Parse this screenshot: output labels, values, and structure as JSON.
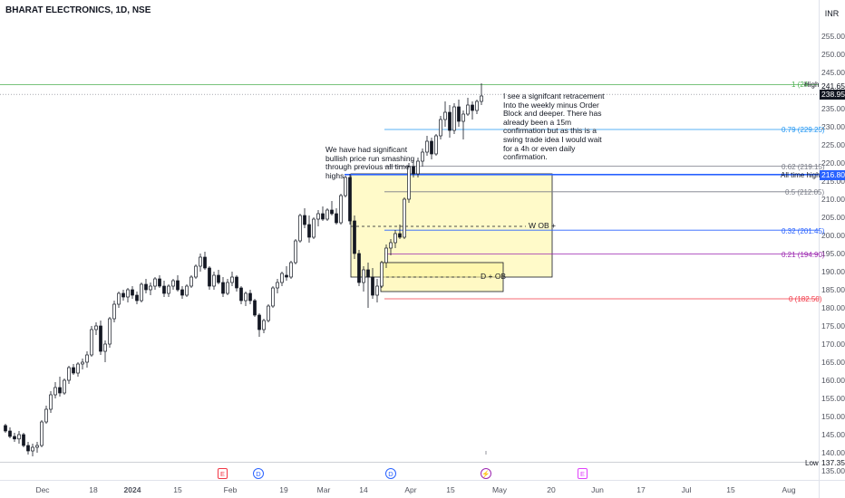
{
  "header": {
    "symbol_title": "BHARAT ELECTRONICS, 1D, NSE",
    "currency": "INR"
  },
  "chart_data": {
    "type": "candlestick",
    "ylim": [
      135,
      258
    ],
    "y_ticks": [
      135,
      140,
      145,
      150,
      155,
      160,
      165,
      170,
      175,
      180,
      185,
      190,
      195,
      200,
      205,
      210,
      215,
      220,
      225,
      230,
      235,
      240,
      245,
      250,
      255
    ],
    "y_tick_labels": [
      "135.00",
      "140.00",
      "145.00",
      "150.00",
      "155.00",
      "160.00",
      "165.00",
      "170.00",
      "175.00",
      "180.00",
      "185.00",
      "190.00",
      "195.00",
      "200.00",
      "205.00",
      "210.00",
      "215.00",
      "220.00",
      "225.00",
      "230.00",
      "235.00",
      "240.00",
      "245.00",
      "250.00",
      "255.00"
    ],
    "x_ticks": [
      "Dec",
      "18",
      "2024",
      "15",
      "Feb",
      "19",
      "Mar",
      "14",
      "Apr",
      "15",
      "May",
      "20",
      "Jun",
      "17",
      "Jul",
      "15",
      "Aug"
    ],
    "candles": [
      [
        147.5,
        148.0,
        145.5,
        146.0
      ],
      [
        146.0,
        147.0,
        144.0,
        144.5
      ],
      [
        144.5,
        145.5,
        143.0,
        143.8
      ],
      [
        143.8,
        146.0,
        142.5,
        145.0
      ],
      [
        145.0,
        145.5,
        141.5,
        142.0
      ],
      [
        142.0,
        143.0,
        139.5,
        140.5
      ],
      [
        140.5,
        142.5,
        139.0,
        141.5
      ],
      [
        141.5,
        143.0,
        140.0,
        142.0
      ],
      [
        142.0,
        149.0,
        141.5,
        148.5
      ],
      [
        148.5,
        153.0,
        148.0,
        152.0
      ],
      [
        152.0,
        157.0,
        151.0,
        156.0
      ],
      [
        156.0,
        159.5,
        155.0,
        158.0
      ],
      [
        158.0,
        161.0,
        155.5,
        156.5
      ],
      [
        156.5,
        160.5,
        156.0,
        160.0
      ],
      [
        160.0,
        164.0,
        159.0,
        163.5
      ],
      [
        163.5,
        164.5,
        161.5,
        162.0
      ],
      [
        162.0,
        165.0,
        161.0,
        164.5
      ],
      [
        164.5,
        166.0,
        163.0,
        165.0
      ],
      [
        165.0,
        168.0,
        163.5,
        167.0
      ],
      [
        167.0,
        175.0,
        166.5,
        174.0
      ],
      [
        174.0,
        176.0,
        172.5,
        175.0
      ],
      [
        175.0,
        176.5,
        167.0,
        168.0
      ],
      [
        168.0,
        171.0,
        165.0,
        170.0
      ],
      [
        170.0,
        177.5,
        169.0,
        177.0
      ],
      [
        177.0,
        182.0,
        176.0,
        181.0
      ],
      [
        181.0,
        184.5,
        180.0,
        184.0
      ],
      [
        184.0,
        185.0,
        182.0,
        183.0
      ],
      [
        183.0,
        185.5,
        181.5,
        185.0
      ],
      [
        185.0,
        186.0,
        182.5,
        183.5
      ],
      [
        183.5,
        184.5,
        181.0,
        182.0
      ],
      [
        182.0,
        187.0,
        181.5,
        186.5
      ],
      [
        186.5,
        188.0,
        184.0,
        185.0
      ],
      [
        185.0,
        187.0,
        183.5,
        186.0
      ],
      [
        186.0,
        188.5,
        185.0,
        188.0
      ],
      [
        188.0,
        189.0,
        185.5,
        186.0
      ],
      [
        186.0,
        187.5,
        183.0,
        184.0
      ],
      [
        184.0,
        186.5,
        183.0,
        186.0
      ],
      [
        186.0,
        188.0,
        185.0,
        187.5
      ],
      [
        187.5,
        189.0,
        184.5,
        185.0
      ],
      [
        185.0,
        186.0,
        182.5,
        183.5
      ],
      [
        183.5,
        186.5,
        183.0,
        186.0
      ],
      [
        186.0,
        189.0,
        185.5,
        188.5
      ],
      [
        188.5,
        192.0,
        188.0,
        191.5
      ],
      [
        191.5,
        195.0,
        190.0,
        194.0
      ],
      [
        194.0,
        195.5,
        190.5,
        191.0
      ],
      [
        191.0,
        191.5,
        185.0,
        186.0
      ],
      [
        186.0,
        190.0,
        185.0,
        189.0
      ],
      [
        189.0,
        190.5,
        186.5,
        187.0
      ],
      [
        187.0,
        188.5,
        183.0,
        184.0
      ],
      [
        184.0,
        188.0,
        183.5,
        187.0
      ],
      [
        187.0,
        190.0,
        186.0,
        188.5
      ],
      [
        188.5,
        189.0,
        184.5,
        185.5
      ],
      [
        185.5,
        186.0,
        181.0,
        182.0
      ],
      [
        182.0,
        184.5,
        180.5,
        184.0
      ],
      [
        184.0,
        185.0,
        181.0,
        182.0
      ],
      [
        182.0,
        182.5,
        177.5,
        178.0
      ],
      [
        178.0,
        178.5,
        172.0,
        174.0
      ],
      [
        174.0,
        177.0,
        173.0,
        176.5
      ],
      [
        176.5,
        181.0,
        176.0,
        180.5
      ],
      [
        180.5,
        186.0,
        180.0,
        185.5
      ],
      [
        185.5,
        188.0,
        184.0,
        187.0
      ],
      [
        187.0,
        190.0,
        186.0,
        189.5
      ],
      [
        189.0,
        191.5,
        187.5,
        188.5
      ],
      [
        188.5,
        193.0,
        188.0,
        192.5
      ],
      [
        192.5,
        199.0,
        192.0,
        198.5
      ],
      [
        198.5,
        206.0,
        198.0,
        205.5
      ],
      [
        205.5,
        207.5,
        202.0,
        203.0
      ],
      [
        203.0,
        205.5,
        198.0,
        199.5
      ],
      [
        199.5,
        205.0,
        199.0,
        204.5
      ],
      [
        204.5,
        207.0,
        202.5,
        206.0
      ],
      [
        206.0,
        208.0,
        204.0,
        204.5
      ],
      [
        204.5,
        207.5,
        204.0,
        207.0
      ],
      [
        207.0,
        209.5,
        205.5,
        206.0
      ],
      [
        206.0,
        207.5,
        203.0,
        203.5
      ],
      [
        203.5,
        211.5,
        203.0,
        211.0
      ],
      [
        211.0,
        216.5,
        210.5,
        216.0
      ],
      [
        216.0,
        217.0,
        203.0,
        204.0
      ],
      [
        204.0,
        205.5,
        193.5,
        195.0
      ],
      [
        195.0,
        196.0,
        186.0,
        187.0
      ],
      [
        187.0,
        191.5,
        184.5,
        190.5
      ],
      [
        190.5,
        192.5,
        180.0,
        188.5
      ],
      [
        188.5,
        191.0,
        182.5,
        183.5
      ],
      [
        183.5,
        188.0,
        181.5,
        186.0
      ],
      [
        186.0,
        193.0,
        185.5,
        192.5
      ],
      [
        192.5,
        197.5,
        191.0,
        196.5
      ],
      [
        196.5,
        199.0,
        194.5,
        198.0
      ],
      [
        198.0,
        201.5,
        196.5,
        200.5
      ],
      [
        200.5,
        203.0,
        199.0,
        199.5
      ],
      [
        199.5,
        210.5,
        199.0,
        210.0
      ],
      [
        210.0,
        220.0,
        209.0,
        219.0
      ],
      [
        219.0,
        221.0,
        216.0,
        217.0
      ],
      [
        217.0,
        221.5,
        216.0,
        220.5
      ],
      [
        220.5,
        224.0,
        219.0,
        223.0
      ],
      [
        223.0,
        227.5,
        222.0,
        226.0
      ],
      [
        226.0,
        227.0,
        221.0,
        222.5
      ],
      [
        222.5,
        228.0,
        222.0,
        227.5
      ],
      [
        227.5,
        233.0,
        226.5,
        232.0
      ],
      [
        232.0,
        237.0,
        230.0,
        234.0
      ],
      [
        234.0,
        236.0,
        227.0,
        229.0
      ],
      [
        229.0,
        236.5,
        228.0,
        235.5
      ],
      [
        235.5,
        237.5,
        230.0,
        231.5
      ],
      [
        231.5,
        234.5,
        226.5,
        233.5
      ],
      [
        233.5,
        238.0,
        233.0,
        236.0
      ],
      [
        236.0,
        237.0,
        232.0,
        234.5
      ],
      [
        234.5,
        237.5,
        233.5,
        237.0
      ],
      [
        237.0,
        242.0,
        236.0,
        238.5
      ]
    ],
    "fib_levels": [
      {
        "ratio": "1",
        "price": 241.65,
        "label": "1 (24",
        "color": "#4caf50"
      },
      {
        "ratio": "0.79",
        "price": 229.25,
        "label": "0.79 (229.25)",
        "color": "#2196f3"
      },
      {
        "ratio": "0.62",
        "price": 219.15,
        "label": "0.62 (219.15)",
        "color": "#787b86"
      },
      {
        "ratio": "0.5",
        "price": 212.05,
        "label": "0.5 (212.05)",
        "color": "#787b86"
      },
      {
        "ratio": "0.32",
        "price": 201.45,
        "label": "0.32 (201.45)",
        "color": "#2962ff"
      },
      {
        "ratio": "0.21",
        "price": 194.9,
        "label": "0.21 (194.90)",
        "color": "#9c27b0"
      },
      {
        "ratio": "0",
        "price": 182.5,
        "label": "0 (182.50)",
        "color": "#f23645"
      }
    ],
    "ath_line": {
      "price": 216.8,
      "label": "All time highs"
    },
    "boxes": [
      {
        "name": "W OB +",
        "top": 217.0,
        "bottom": 188.5,
        "midline": 202.5
      },
      {
        "name": "D + OB",
        "top": 192.5,
        "bottom": 184.5,
        "midline": 188.5
      }
    ],
    "price_tags": {
      "high_label": "High",
      "high_value": "241.65",
      "last_value": "238.95",
      "ath_value": "216.80",
      "low_label": "Low",
      "low_value": "137.35"
    },
    "annotations": {
      "left": [
        "We have had significant",
        "bullish price run smashing",
        "through previous all time",
        "highs"
      ],
      "right": [
        "I see a signifcant  retracement",
        "Into the weekly minus Order",
        "Block and deeper. There has",
        "already been a 15m",
        "confirmation but as this is a",
        "swing trade idea I would wait",
        "for a 4h or even daily",
        "confirmation."
      ]
    },
    "events": [
      {
        "glyph": "E",
        "color": "#f23645",
        "round": false
      },
      {
        "glyph": "D",
        "color": "#2962ff",
        "round": true
      },
      {
        "glyph": "D",
        "color": "#2962ff",
        "round": true
      },
      {
        "glyph": "⚡",
        "color": "#9c27b0",
        "round": true
      },
      {
        "glyph": "E",
        "color": "#e040fb",
        "round": false
      }
    ]
  }
}
